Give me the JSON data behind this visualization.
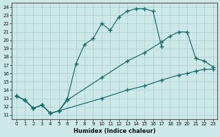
{
  "xlabel": "Humidex (Indice chaleur)",
  "bg_color": "#cce8e8",
  "line_color": "#1a6b6b",
  "grid_color": "#aacccc",
  "xlim": [
    -0.5,
    23.5
  ],
  "ylim": [
    10.5,
    24.5
  ],
  "yticks": [
    11,
    12,
    13,
    14,
    15,
    16,
    17,
    18,
    19,
    20,
    21,
    22,
    23,
    24
  ],
  "xticks": [
    0,
    1,
    2,
    3,
    4,
    5,
    6,
    7,
    8,
    9,
    10,
    11,
    12,
    13,
    14,
    15,
    16,
    17,
    18,
    19,
    20,
    21,
    22,
    23
  ],
  "lines": [
    {
      "x": [
        0,
        1,
        2,
        3,
        4,
        5,
        10,
        13,
        15,
        17,
        19,
        20,
        21,
        22,
        23
      ],
      "y": [
        13.3,
        12.8,
        11.8,
        12.2,
        11.2,
        11.5,
        13.0,
        14.0,
        14.5,
        15.2,
        15.8,
        16.0,
        16.3,
        16.5,
        16.5
      ]
    },
    {
      "x": [
        0,
        1,
        2,
        3,
        4,
        5,
        6,
        10,
        13,
        15,
        17,
        18,
        19,
        20,
        21,
        22,
        23
      ],
      "y": [
        13.3,
        12.8,
        11.8,
        12.2,
        11.2,
        11.5,
        12.8,
        15.5,
        17.5,
        18.5,
        19.8,
        20.5,
        21.0,
        21.0,
        17.8,
        17.5,
        16.8
      ]
    },
    {
      "x": [
        0,
        1,
        2,
        3,
        4,
        5,
        6,
        7,
        8,
        9,
        10,
        11,
        12,
        13,
        14,
        15,
        16,
        17
      ],
      "y": [
        13.3,
        12.8,
        11.8,
        12.2,
        11.2,
        11.5,
        13.0,
        17.2,
        19.5,
        20.2,
        22.0,
        21.2,
        22.8,
        23.5,
        23.8,
        23.8,
        23.5,
        19.2
      ]
    }
  ]
}
